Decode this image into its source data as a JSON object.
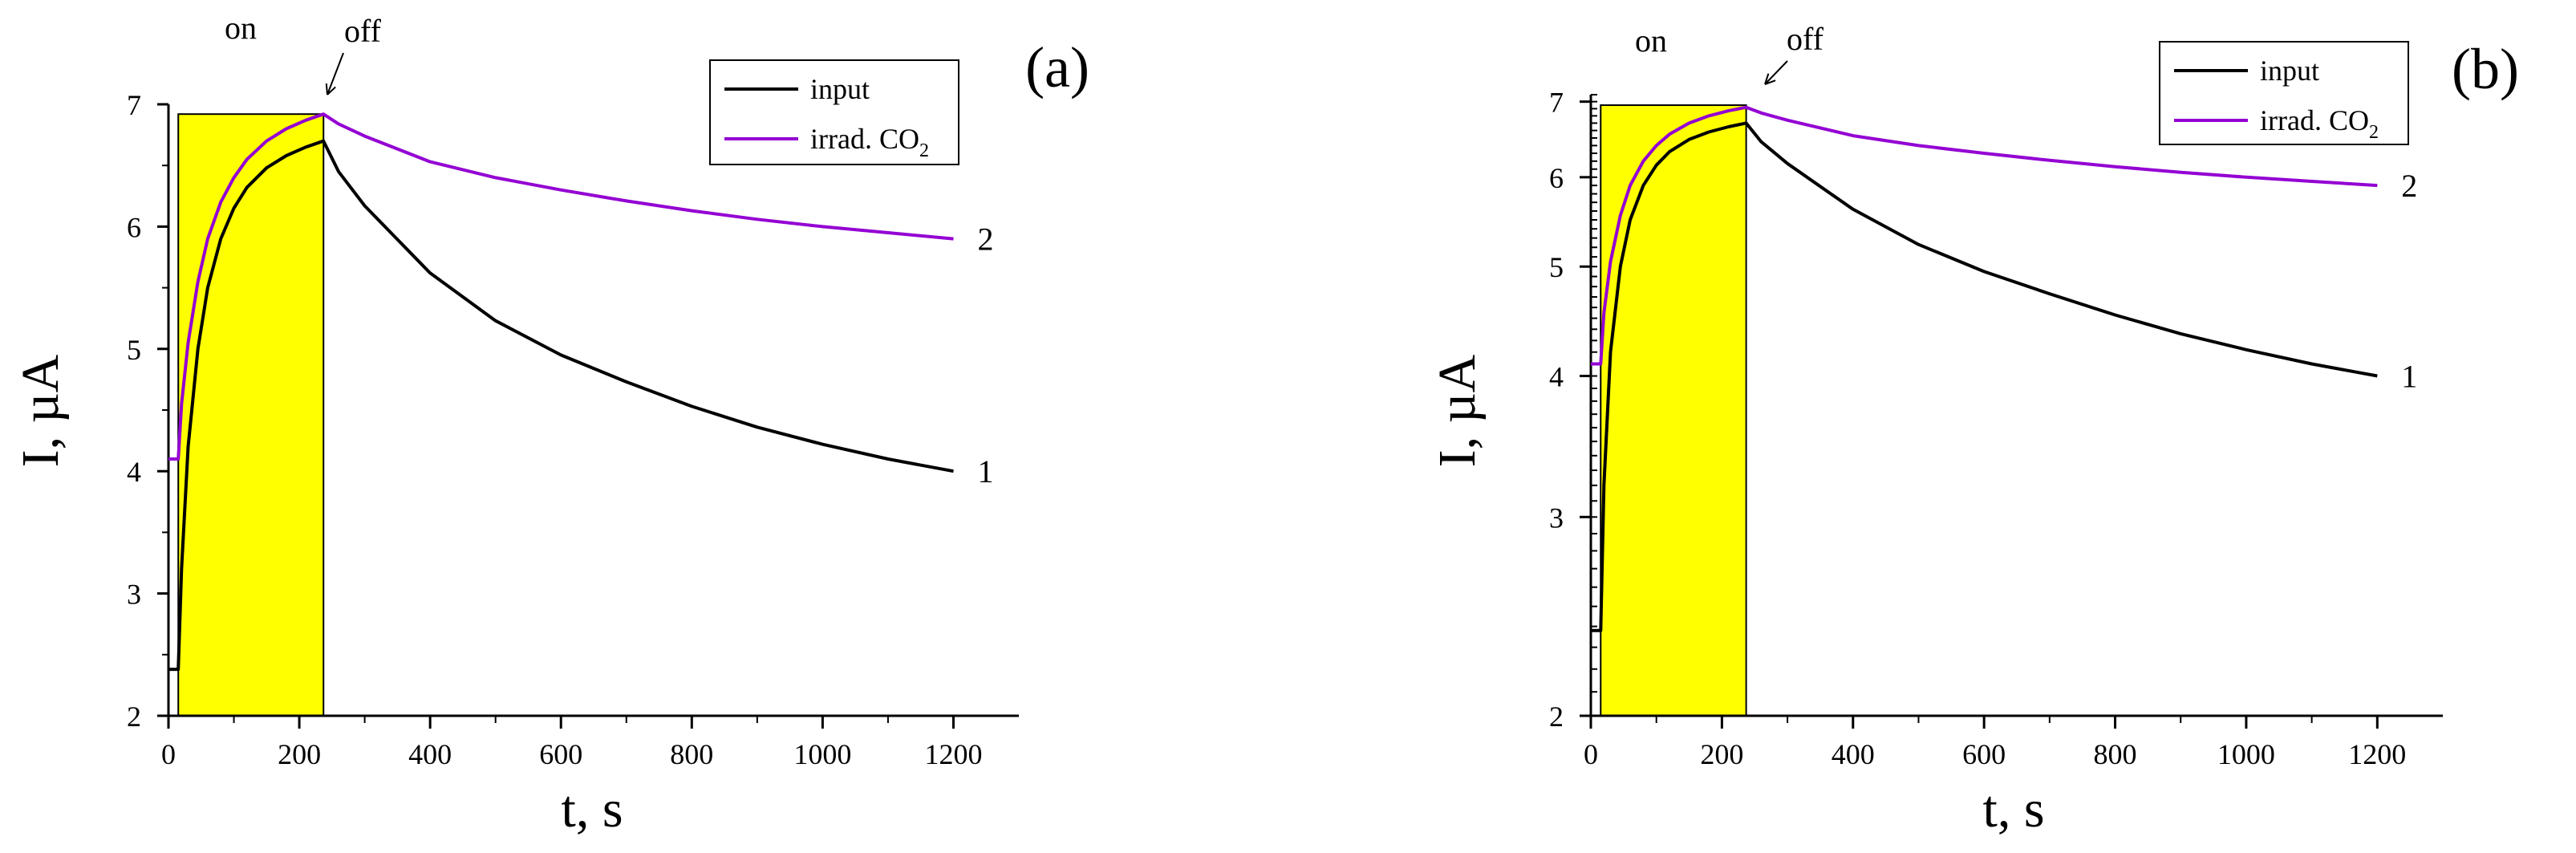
{
  "chart_data": [
    {
      "type": "line",
      "panel_label": "(a)",
      "xlabel": "t, s",
      "ylabel": "I, µA",
      "xlim": [
        0,
        1300
      ],
      "ylim": [
        2,
        7
      ],
      "y_scale": "linear",
      "x_ticks": [
        0,
        200,
        400,
        600,
        800,
        1000,
        1200
      ],
      "y_ticks": [
        2,
        3,
        4,
        5,
        6,
        7
      ],
      "x_tick_labels": [
        "0",
        "200",
        "400",
        "600",
        "800",
        "1000",
        "1200"
      ],
      "y_tick_labels": [
        "2",
        "3",
        "4",
        "5",
        "6",
        "7"
      ],
      "shaded_region": {
        "x": [
          15,
          237
        ],
        "y": [
          2,
          6.92
        ],
        "color": "#ffff00"
      },
      "annotations": {
        "on": "on",
        "off": "off"
      },
      "legend_position": "top-right",
      "series": [
        {
          "name": "input",
          "curve_label": "1",
          "color": "#000000",
          "x": [
            0,
            15,
            20,
            30,
            45,
            60,
            80,
            100,
            120,
            150,
            180,
            210,
            237,
            260,
            300,
            400,
            500,
            600,
            700,
            800,
            900,
            1000,
            1100,
            1200
          ],
          "y": [
            2.38,
            2.38,
            3.2,
            4.2,
            5.0,
            5.5,
            5.9,
            6.15,
            6.32,
            6.48,
            6.58,
            6.65,
            6.7,
            6.45,
            6.17,
            5.62,
            5.23,
            4.95,
            4.73,
            4.53,
            4.36,
            4.22,
            4.1,
            4.0
          ]
        },
        {
          "name": "irrad. CO",
          "name_subscript": "2",
          "curve_label": "2",
          "color": "#9400d3",
          "x": [
            0,
            15,
            20,
            30,
            45,
            60,
            80,
            100,
            120,
            150,
            180,
            210,
            237,
            260,
            300,
            400,
            500,
            600,
            700,
            800,
            900,
            1000,
            1100,
            1200
          ],
          "y": [
            4.1,
            4.1,
            4.55,
            5.05,
            5.55,
            5.9,
            6.2,
            6.4,
            6.55,
            6.7,
            6.8,
            6.87,
            6.92,
            6.84,
            6.74,
            6.53,
            6.4,
            6.3,
            6.21,
            6.13,
            6.06,
            6.0,
            5.95,
            5.9
          ]
        }
      ]
    },
    {
      "type": "line",
      "panel_label": "(b)",
      "xlabel": "t, s",
      "ylabel": "I, µA",
      "xlim": [
        0,
        1300
      ],
      "ylim": [
        2,
        7.1
      ],
      "y_scale": "log",
      "x_ticks": [
        0,
        200,
        400,
        600,
        800,
        1000,
        1200
      ],
      "y_ticks": [
        2,
        3,
        4,
        5,
        6,
        7
      ],
      "x_tick_labels": [
        "0",
        "200",
        "400",
        "600",
        "800",
        "1000",
        "1200"
      ],
      "y_tick_labels": [
        "2",
        "3",
        "4",
        "5",
        "6",
        "7"
      ],
      "shaded_region": {
        "x": [
          15,
          237
        ],
        "y": [
          2,
          6.95
        ],
        "color": "#ffff00"
      },
      "annotations": {
        "on": "on",
        "off": "off"
      },
      "legend_position": "top-right",
      "series": [
        {
          "name": "input",
          "curve_label": "1",
          "color": "#000000",
          "x": [
            0,
            15,
            20,
            30,
            45,
            60,
            80,
            100,
            120,
            150,
            180,
            210,
            237,
            260,
            300,
            400,
            500,
            600,
            700,
            800,
            900,
            1000,
            1100,
            1200
          ],
          "y": [
            2.38,
            2.38,
            3.2,
            4.2,
            5.0,
            5.5,
            5.9,
            6.15,
            6.32,
            6.48,
            6.58,
            6.65,
            6.7,
            6.45,
            6.17,
            5.62,
            5.23,
            4.95,
            4.73,
            4.53,
            4.36,
            4.22,
            4.1,
            4.0
          ]
        },
        {
          "name": "irrad. CO",
          "name_subscript": "2",
          "curve_label": "2",
          "color": "#9400d3",
          "x": [
            0,
            15,
            20,
            30,
            45,
            60,
            80,
            100,
            120,
            150,
            180,
            210,
            237,
            260,
            300,
            400,
            500,
            600,
            700,
            800,
            900,
            1000,
            1100,
            1200
          ],
          "y": [
            4.1,
            4.1,
            4.55,
            5.05,
            5.55,
            5.9,
            6.2,
            6.4,
            6.55,
            6.7,
            6.8,
            6.87,
            6.92,
            6.84,
            6.74,
            6.53,
            6.4,
            6.3,
            6.21,
            6.13,
            6.06,
            6.0,
            5.95,
            5.9
          ]
        }
      ]
    }
  ]
}
